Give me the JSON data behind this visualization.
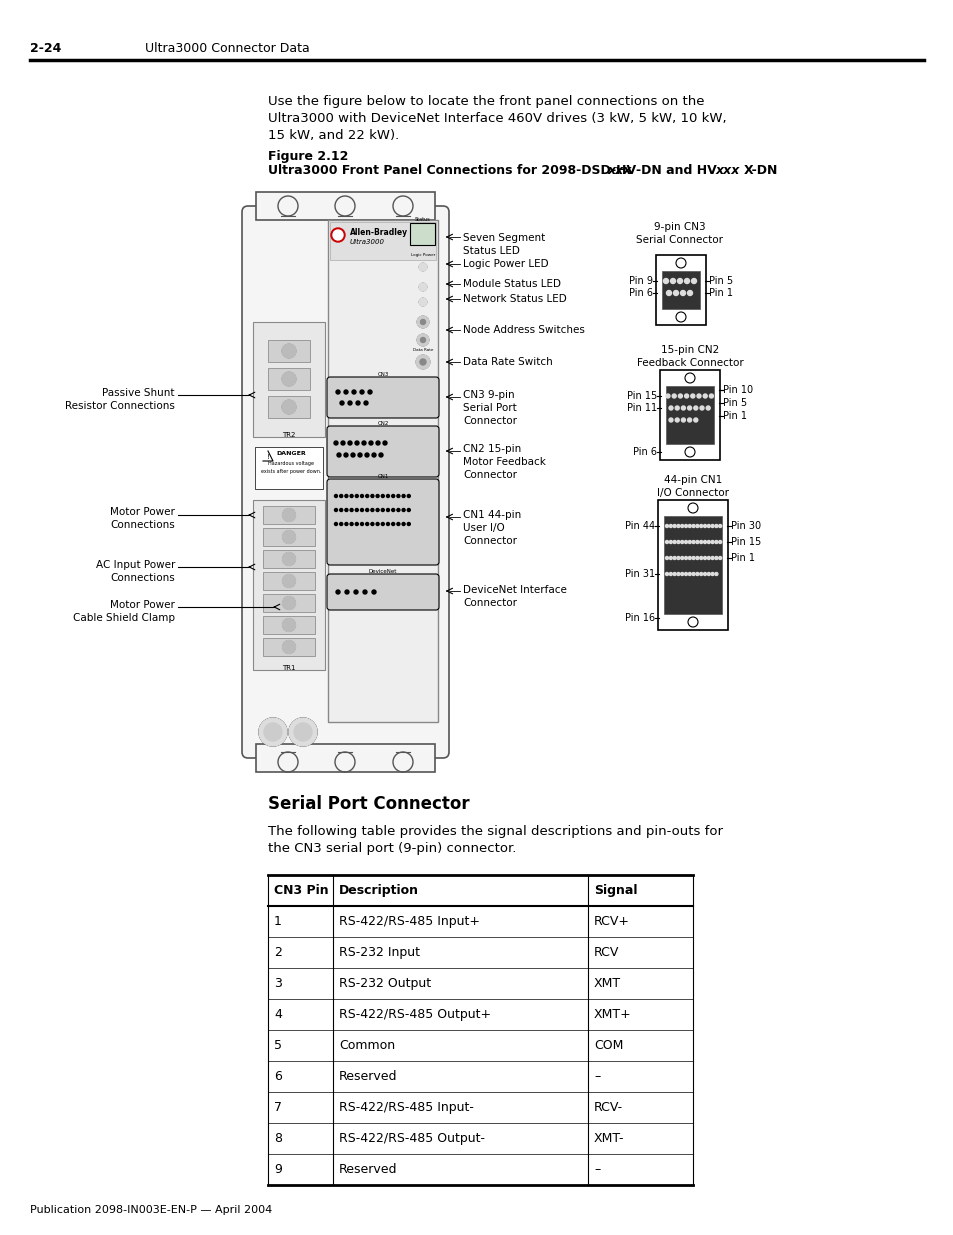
{
  "page_number": "2-24",
  "header_text": "Ultra3000 Connector Data",
  "footer_text": "Publication 2098-IN003E-EN-P — April 2004",
  "intro_lines": [
    "Use the figure below to locate the front panel connections on the",
    "Ultra3000 with DeviceNet Interface 460V drives (3 kW, 5 kW, 10 kW,",
    "15 kW, and 22 kW)."
  ],
  "figure_label": "Figure 2.12",
  "figure_caption": "Ultra3000 Front Panel Connections for 2098-DSD-HV⁣xxx⁣-DN and HV⁣xxx⁣X-DN",
  "section_title": "Serial Port Connector",
  "section_text_lines": [
    "The following table provides the signal descriptions and pin-outs for",
    "the CN3 serial port (9-pin) connector."
  ],
  "table_headers": [
    "CN3 Pin",
    "Description",
    "Signal"
  ],
  "table_rows": [
    [
      "1",
      "RS-422/RS-485 Input+",
      "RCV+"
    ],
    [
      "2",
      "RS-232 Input",
      "RCV"
    ],
    [
      "3",
      "RS-232 Output",
      "XMT"
    ],
    [
      "4",
      "RS-422/RS-485 Output+",
      "XMT+"
    ],
    [
      "5",
      "Common",
      "COM"
    ],
    [
      "6",
      "Reserved",
      "–"
    ],
    [
      "7",
      "RS-422/RS-485 Input-",
      "RCV-"
    ],
    [
      "8",
      "RS-422/RS-485 Output-",
      "XMT-"
    ],
    [
      "9",
      "Reserved",
      "–"
    ]
  ],
  "left_labels": [
    [
      175,
      390,
      "Passive Shunt",
      "Resistor Connections"
    ],
    [
      175,
      510,
      "Motor Power",
      "Connections"
    ],
    [
      175,
      565,
      "AC Input Power",
      "Connections"
    ],
    [
      175,
      600,
      "Motor Power",
      "Cable Shield Clamp"
    ]
  ],
  "right_annotations": [
    [
      245,
      "Seven Segment\nStatus LED"
    ],
    [
      265,
      "Logic Power LED"
    ],
    [
      284,
      "Module Status LED"
    ],
    [
      298,
      "Network Status LED"
    ],
    [
      318,
      "Node Address Switches"
    ],
    [
      355,
      "Data Rate Switch"
    ],
    [
      390,
      "CN3 9-pin\nSerial Port\nConnector"
    ],
    [
      435,
      "CN2 15-pin\nMotor Feedback\nConnector"
    ],
    [
      490,
      "CN1 44-pin\nUser I/O\nConnector"
    ],
    [
      575,
      "DeviceNet Interface\nConnector"
    ]
  ],
  "bg_color": "#ffffff",
  "text_color": "#000000"
}
